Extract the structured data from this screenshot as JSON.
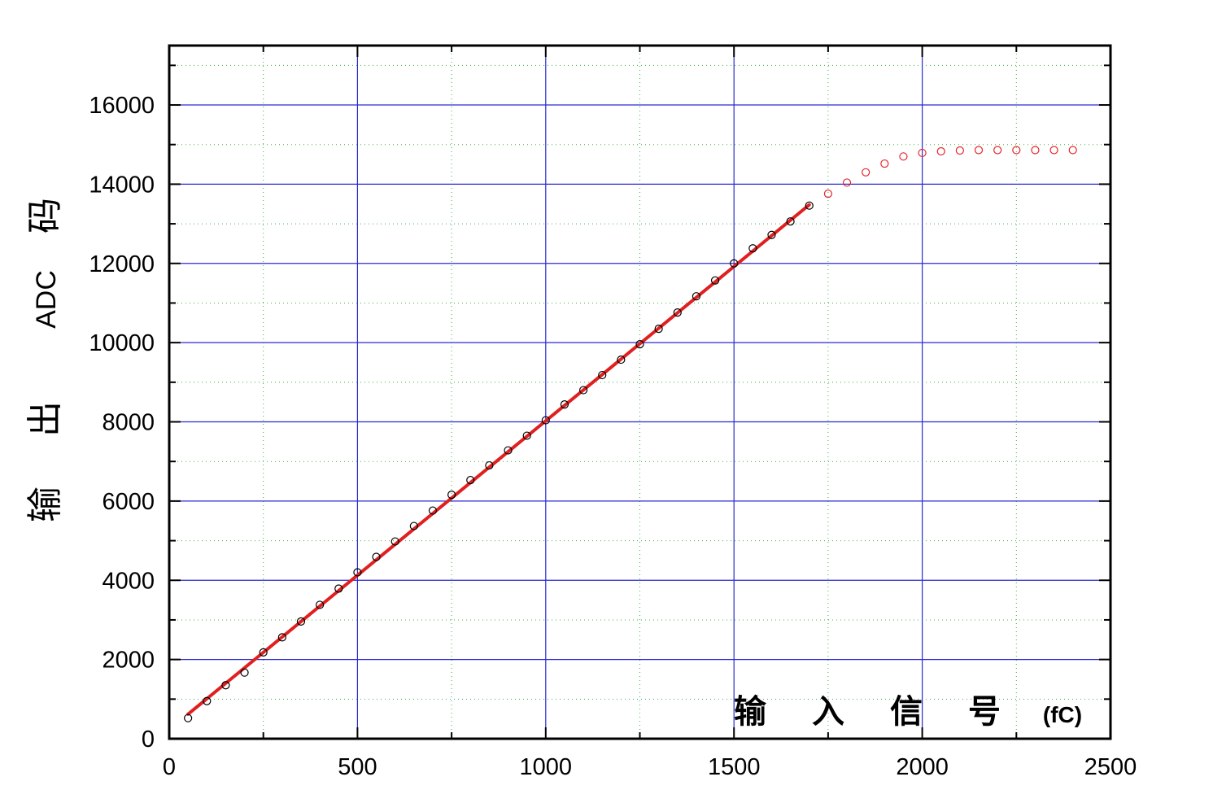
{
  "chart_data": {
    "type": "scatter",
    "xlabel": {
      "chars": [
        "输",
        "入",
        "信",
        "号"
      ],
      "unit": "(fC)"
    },
    "ylabel": {
      "chars": [
        "输",
        "出"
      ],
      "abbr": "ADC",
      "last": "码"
    },
    "xlim": [
      0,
      2500
    ],
    "ylim": [
      0,
      17500
    ],
    "xticks": [
      "0",
      "500",
      "1000",
      "1500",
      "2000",
      "2500"
    ],
    "yticks": [
      "0",
      "2000",
      "4000",
      "6000",
      "8000",
      "10000",
      "12000",
      "14000",
      "16000"
    ],
    "grid": {
      "major": true,
      "minor": true
    },
    "series": [
      {
        "marker": "open-circle",
        "color": "#000000",
        "points": [
          [
            50,
            520
          ],
          [
            100,
            950
          ],
          [
            150,
            1350
          ],
          [
            200,
            1670
          ],
          [
            250,
            2180
          ],
          [
            300,
            2560
          ],
          [
            350,
            2960
          ],
          [
            400,
            3380
          ],
          [
            450,
            3790
          ],
          [
            500,
            4200
          ],
          [
            550,
            4590
          ],
          [
            600,
            4980
          ],
          [
            650,
            5370
          ],
          [
            700,
            5760
          ],
          [
            750,
            6160
          ],
          [
            800,
            6530
          ],
          [
            850,
            6900
          ],
          [
            900,
            7280
          ],
          [
            950,
            7650
          ],
          [
            1000,
            8040
          ],
          [
            1050,
            8440
          ],
          [
            1100,
            8800
          ],
          [
            1150,
            9180
          ],
          [
            1200,
            9570
          ],
          [
            1250,
            9960
          ],
          [
            1300,
            10350
          ],
          [
            1350,
            10760
          ],
          [
            1400,
            11170
          ],
          [
            1450,
            11570
          ],
          [
            1500,
            12000
          ],
          [
            1550,
            12380
          ],
          [
            1600,
            12720
          ],
          [
            1650,
            13060
          ],
          [
            1700,
            13460
          ]
        ]
      },
      {
        "marker": "open-circle",
        "color": "#e8242a",
        "points": [
          [
            1750,
            13760
          ],
          [
            1800,
            14040
          ],
          [
            1850,
            14300
          ],
          [
            1900,
            14520
          ],
          [
            1950,
            14700
          ],
          [
            2000,
            14790
          ],
          [
            2050,
            14830
          ],
          [
            2100,
            14850
          ],
          [
            2150,
            14860
          ],
          [
            2200,
            14860
          ],
          [
            2250,
            14860
          ],
          [
            2300,
            14860
          ],
          [
            2350,
            14860
          ],
          [
            2400,
            14860
          ]
        ]
      }
    ],
    "fit_line": {
      "color": "#e02020",
      "from": [
        50,
        620
      ],
      "to": [
        1700,
        13480
      ]
    }
  }
}
